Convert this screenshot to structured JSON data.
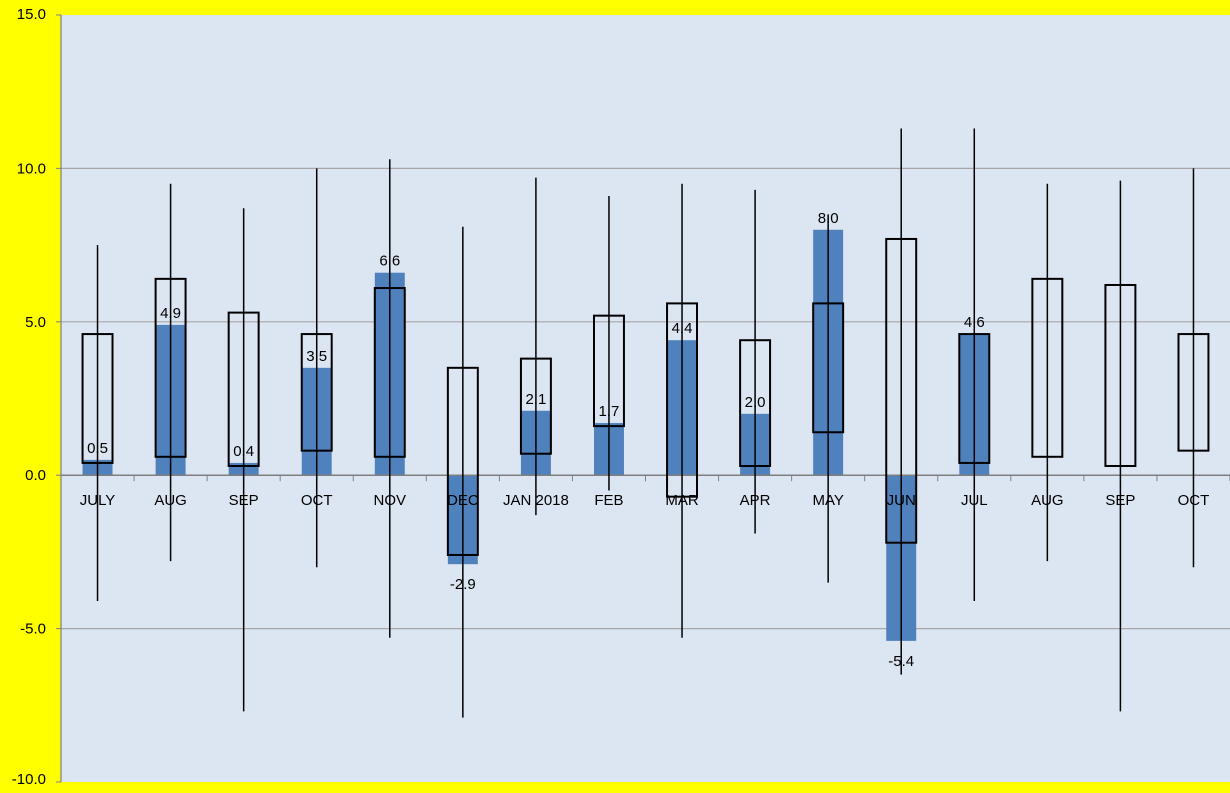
{
  "chart_data": {
    "type": "bar",
    "title": "",
    "xlabel": "",
    "ylabel": "",
    "ylim": [
      -10,
      15
    ],
    "yticks": [
      "15.0",
      "10.0",
      "5.0",
      "0.0",
      "-5.0",
      "-10.0"
    ],
    "categories": [
      "JULY",
      "AUG",
      "SEP",
      "OCT",
      "NOV",
      "DEC",
      "JAN 2018",
      "FEB",
      "MAR",
      "APR",
      "MAY",
      "JUN",
      "JUL",
      "AUG",
      "SEP",
      "OCT"
    ],
    "grid": true,
    "legend": "none",
    "colors": {
      "page_background": "#ffff00",
      "plot_background": "#dce6f2",
      "bar": "#4f81bd",
      "gridline": "#a6a6a6",
      "box_outline": "#000000"
    },
    "series": [
      {
        "type": "bar",
        "values": [
          0.5,
          4.9,
          0.4,
          3.5,
          6.6,
          -2.9,
          2.1,
          1.7,
          4.4,
          2.0,
          8.0,
          -5.4,
          4.6,
          null,
          null,
          null
        ],
        "data_labels": [
          "0.5",
          "4.9",
          "0.4",
          "3.5",
          "6.6",
          "-2.9",
          "2.1",
          "1.7",
          "4.4",
          "2.0",
          "8.0",
          "-5.4",
          "4.6",
          "",
          "",
          ""
        ]
      },
      {
        "type": "box",
        "box_low": [
          0.4,
          0.6,
          0.3,
          0.8,
          0.6,
          -2.6,
          0.7,
          1.6,
          -0.7,
          0.3,
          1.4,
          -2.2,
          0.4,
          0.6,
          0.3,
          0.8
        ],
        "box_high": [
          4.6,
          6.4,
          5.3,
          4.6,
          6.1,
          3.5,
          3.8,
          5.2,
          5.6,
          4.4,
          5.6,
          7.7,
          4.6,
          6.4,
          6.2,
          4.6
        ],
        "whisker_low": [
          -4.1,
          -2.8,
          -7.7,
          -3.0,
          -5.3,
          -7.9,
          -1.3,
          -0.5,
          -5.3,
          -1.9,
          -3.5,
          -6.5,
          -4.1,
          -2.8,
          -7.7,
          -3.0
        ],
        "whisker_high": [
          7.5,
          9.5,
          8.7,
          10.0,
          10.3,
          8.1,
          9.7,
          9.1,
          9.5,
          9.3,
          8.5,
          11.3,
          11.3,
          9.5,
          9.6,
          10.0
        ]
      }
    ]
  }
}
